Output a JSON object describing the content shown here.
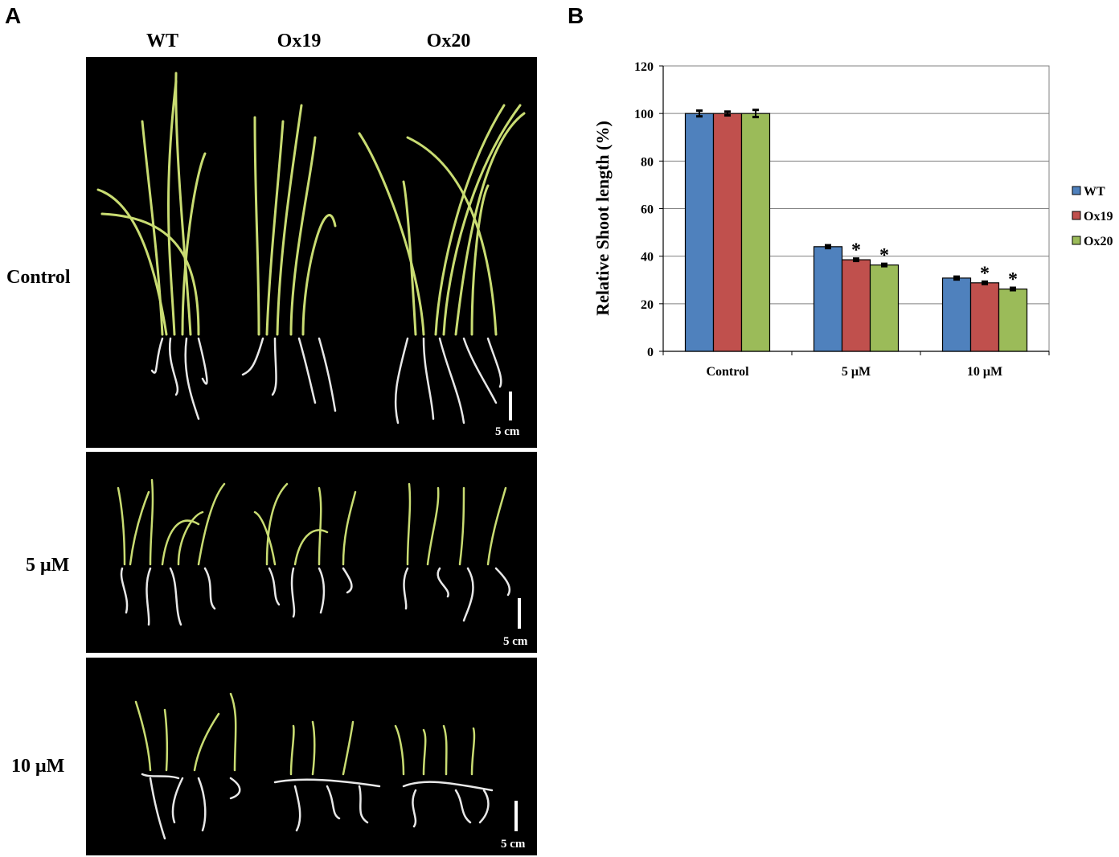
{
  "panels": {
    "a_label": "A",
    "b_label": "B"
  },
  "photo_panel": {
    "columns": [
      "WT",
      "Ox19",
      "Ox20"
    ],
    "rows": [
      {
        "label": "Control",
        "scale_label": "5 cm"
      },
      {
        "label": "5 μM",
        "scale_label": "5 cm"
      },
      {
        "label": "10 μM",
        "scale_label": "5 cm"
      }
    ]
  },
  "chart_data": {
    "type": "bar",
    "title": "",
    "xlabel": "",
    "ylabel": "Relative Shoot length (%)",
    "ylim": [
      0,
      120
    ],
    "yticks": [
      0,
      20,
      40,
      60,
      80,
      100,
      120
    ],
    "categories": [
      "Control",
      "5 μM",
      "10 μM"
    ],
    "grid": true,
    "legend_position": "right",
    "series": [
      {
        "name": "WT",
        "color": "#4f81bd",
        "values": [
          100,
          44,
          30.8
        ],
        "errors": [
          1.2,
          0.6,
          0.6
        ],
        "significance": [
          "",
          "",
          ""
        ]
      },
      {
        "name": "Ox19",
        "color": "#c0504d",
        "values": [
          100,
          38.5,
          28.8
        ],
        "errors": [
          0.8,
          0.5,
          0.5
        ],
        "significance": [
          "",
          "*",
          "*"
        ]
      },
      {
        "name": "Ox20",
        "color": "#9bbb59",
        "values": [
          100,
          36.3,
          26.2
        ],
        "errors": [
          1.5,
          0.5,
          0.5
        ],
        "significance": [
          "",
          "*",
          "*"
        ]
      }
    ]
  }
}
